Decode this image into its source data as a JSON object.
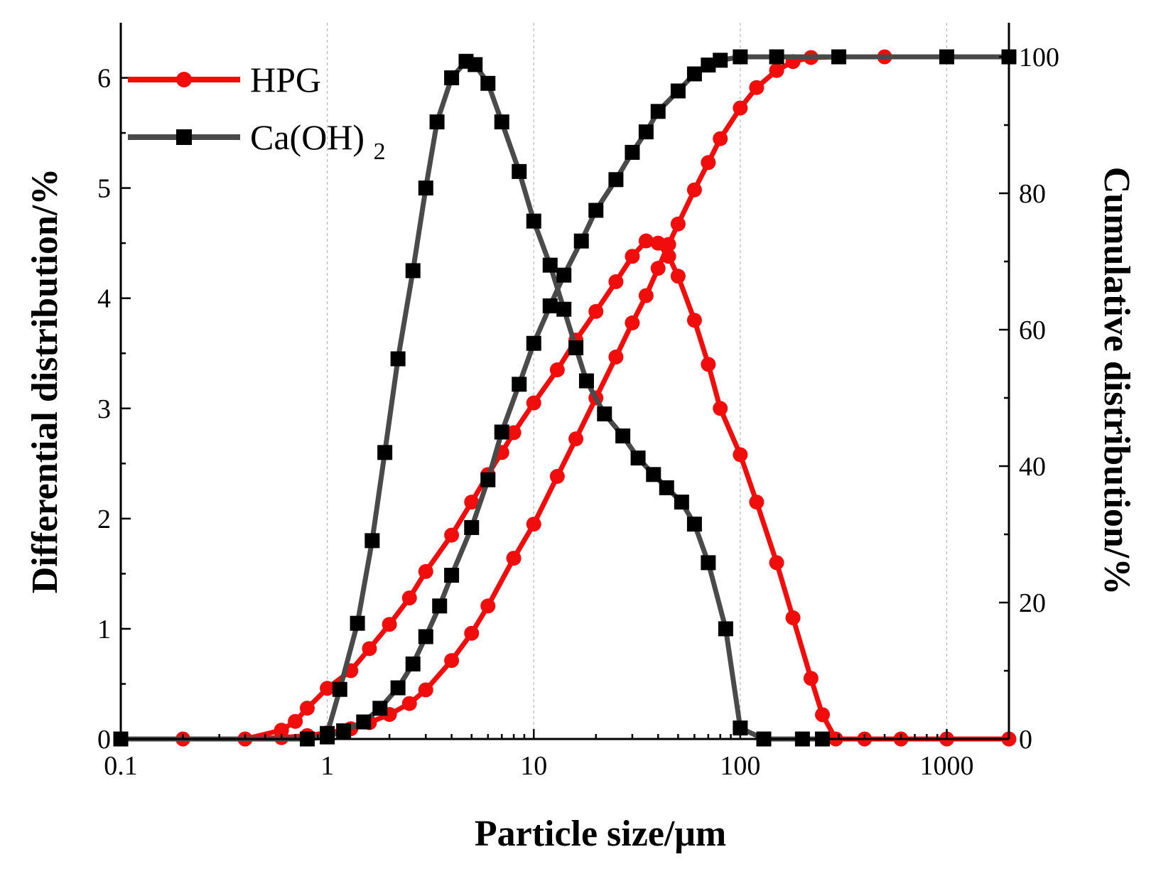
{
  "chart_data": {
    "type": "line",
    "xscale": "log",
    "xlabel": "Particle size/μm",
    "ylabel_left": "Differential distribution/%",
    "ylabel_right": "Cumulative distribution/%",
    "xlim": [
      0.1,
      2000
    ],
    "ylim_left": [
      0,
      6.5
    ],
    "ylim_right": [
      0,
      105
    ],
    "x_ticks": [
      0.1,
      1,
      10,
      100,
      1000
    ],
    "x_tick_labels": [
      "0.1",
      "1",
      "10",
      "100",
      "1000"
    ],
    "y_left_ticks": [
      0,
      1,
      2,
      3,
      4,
      5,
      6
    ],
    "y_left_tick_labels": [
      "0",
      "1",
      "2",
      "3",
      "4",
      "5",
      "6"
    ],
    "y_right_ticks": [
      0,
      20,
      40,
      60,
      80,
      100
    ],
    "y_right_tick_labels": [
      "0",
      "20",
      "40",
      "60",
      "80",
      "100"
    ],
    "grid": "vertical-dashed-at-decades",
    "legend": {
      "placement": "top-left",
      "entries": [
        {
          "label": "HPG",
          "color": "#f20d0d",
          "marker": "circle"
        },
        {
          "label": "Ca(OH)",
          "subscript": "2",
          "color": "#1a1a1a",
          "marker": "square"
        }
      ]
    },
    "series": [
      {
        "name": "HPG differential",
        "axis": "left",
        "color": "#f20d0d",
        "marker": "circle",
        "x": [
          0.1,
          0.2,
          0.4,
          0.6,
          0.7,
          0.8,
          1.0,
          1.3,
          1.6,
          2.0,
          2.5,
          3.0,
          4.0,
          5.0,
          6.0,
          7.0,
          8.0,
          10,
          13,
          16,
          20,
          25,
          30,
          35,
          40,
          45,
          50,
          60,
          70,
          80,
          100,
          120,
          150,
          180,
          220,
          250,
          290,
          400,
          600,
          1000,
          2000
        ],
        "values": [
          0.0,
          0.0,
          0.0,
          0.08,
          0.16,
          0.28,
          0.46,
          0.62,
          0.82,
          1.04,
          1.28,
          1.52,
          1.85,
          2.15,
          2.4,
          2.6,
          2.78,
          3.05,
          3.35,
          3.62,
          3.88,
          4.15,
          4.38,
          4.52,
          4.5,
          4.38,
          4.2,
          3.8,
          3.4,
          3.0,
          2.58,
          2.15,
          1.6,
          1.1,
          0.55,
          0.22,
          0.0,
          0.0,
          0.0,
          0.0,
          0.0
        ]
      },
      {
        "name": "HPG cumulative",
        "axis": "right",
        "color": "#f20d0d",
        "marker": "circle",
        "x": [
          0.1,
          0.4,
          0.6,
          0.8,
          1.0,
          1.3,
          1.6,
          2.0,
          2.5,
          3.0,
          4.0,
          5.0,
          6.0,
          8.0,
          10,
          13,
          16,
          20,
          25,
          30,
          35,
          40,
          45,
          50,
          60,
          70,
          80,
          100,
          120,
          150,
          180,
          220,
          300,
          500,
          1000,
          2000
        ],
        "values": [
          0,
          0,
          0.2,
          0.5,
          0.9,
          1.5,
          2.4,
          3.6,
          5.2,
          7.2,
          11.5,
          15.5,
          19.5,
          26.5,
          31.5,
          38.5,
          44.0,
          50.0,
          56.0,
          61.0,
          65.0,
          69.0,
          72.5,
          75.5,
          80.5,
          84.5,
          88.0,
          92.5,
          95.5,
          98.0,
          99.3,
          99.9,
          100,
          100,
          100,
          100
        ]
      },
      {
        "name": "Ca(OH)2 differential",
        "axis": "left",
        "color": "#1a1a1a",
        "marker": "square",
        "x": [
          1.0,
          1.15,
          1.4,
          1.65,
          1.9,
          2.2,
          2.6,
          3.0,
          3.4,
          4.0,
          4.7,
          5.2,
          6.0,
          7.0,
          8.5,
          10,
          12,
          14,
          16,
          18,
          22,
          27,
          32,
          38,
          44,
          52,
          60,
          70,
          85,
          100,
          130,
          200,
          250
        ],
        "values": [
          0.05,
          0.45,
          1.05,
          1.8,
          2.6,
          3.45,
          4.25,
          5.0,
          5.6,
          6.0,
          6.15,
          6.12,
          5.95,
          5.6,
          5.15,
          4.7,
          4.3,
          3.9,
          3.55,
          3.25,
          2.95,
          2.75,
          2.55,
          2.4,
          2.28,
          2.15,
          1.95,
          1.6,
          1.0,
          0.1,
          0.0,
          0.0,
          0.0
        ]
      },
      {
        "name": "Ca(OH)2 cumulative",
        "axis": "right",
        "color": "#1a1a1a",
        "marker": "square",
        "x": [
          0.1,
          0.8,
          1.0,
          1.2,
          1.5,
          1.8,
          2.2,
          2.6,
          3.0,
          3.5,
          4.0,
          5.0,
          6.0,
          7.0,
          8.5,
          10,
          12,
          14,
          17,
          20,
          25,
          30,
          35,
          40,
          50,
          60,
          70,
          80,
          100,
          150,
          300,
          1000,
          2000
        ],
        "values": [
          0,
          0,
          0.3,
          1.2,
          2.5,
          4.5,
          7.5,
          11,
          15,
          19.5,
          24,
          31,
          38,
          45,
          52,
          58,
          63.5,
          68,
          73,
          77.5,
          82,
          86,
          89,
          92,
          95,
          97.5,
          98.8,
          99.5,
          100,
          100,
          100,
          100,
          100
        ]
      }
    ]
  }
}
